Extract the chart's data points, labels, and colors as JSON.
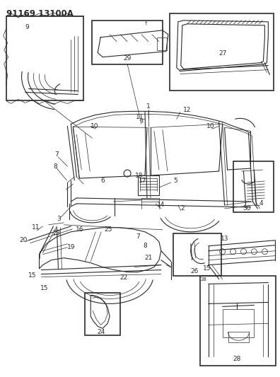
{
  "title": "91169 13100A",
  "bg_color": "#ffffff",
  "line_color": "#2a2a2a",
  "fig_width": 3.96,
  "fig_height": 5.33,
  "dpi": 100,
  "label_fontsize": 6.5,
  "title_fontsize": 8.5
}
